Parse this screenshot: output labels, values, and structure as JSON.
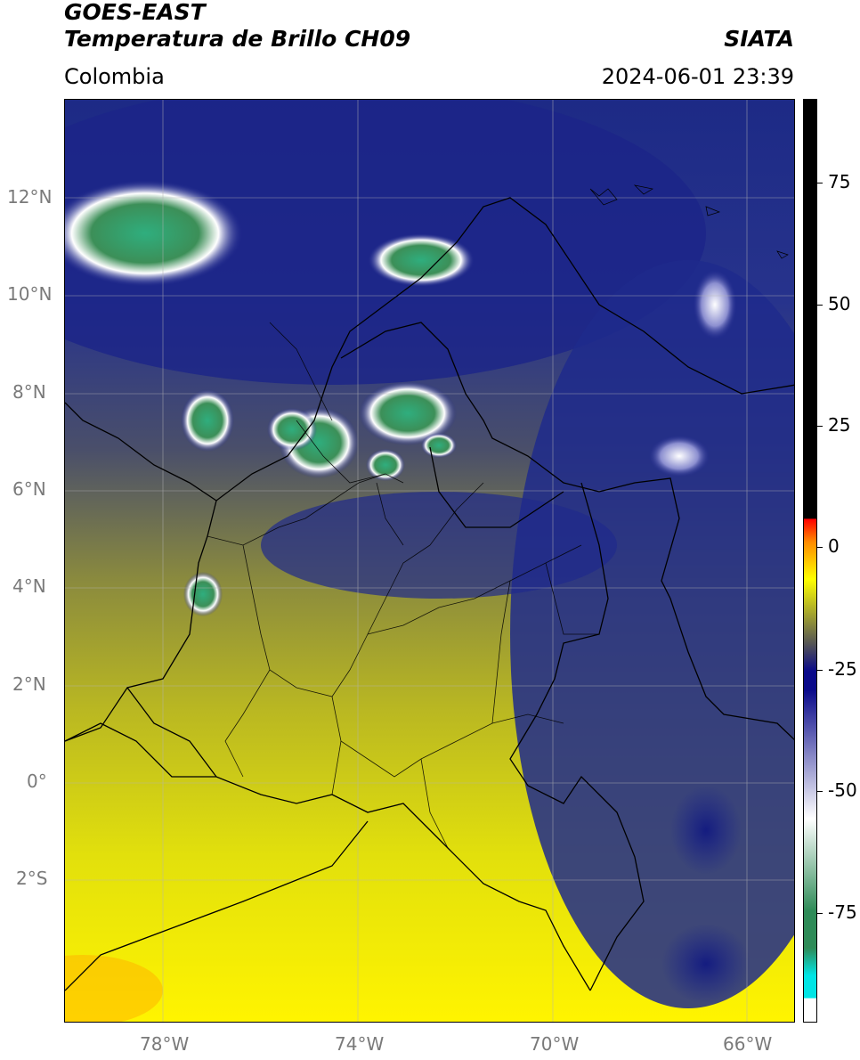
{
  "header": {
    "title_line1": "GOES-EAST",
    "title_line2": "Temperatura de Brillo CH09",
    "agency": "SIATA",
    "region": "Colombia",
    "datetime": "2024-06-01 23:39"
  },
  "map": {
    "lat_labels": [
      "12°N",
      "10°N",
      "8°N",
      "6°N",
      "4°N",
      "2°N",
      "0°",
      "2°S"
    ],
    "lon_labels": [
      "78°W",
      "74°W",
      "70°W",
      "66°W"
    ],
    "extent": {
      "lon_min": -80,
      "lon_max": -65,
      "lat_min": -5,
      "lat_max": 14
    },
    "gridlines": true
  },
  "colorbar": {
    "ticks": [
      "75",
      "50",
      "25",
      "0",
      "-25",
      "-50",
      "-75"
    ],
    "range": [
      -95,
      90
    ],
    "colors": [
      "#ffffff",
      "#00e5e5",
      "#2e8b57",
      "#ffffff",
      "#0a0a8a",
      "#555555",
      "#ffff00",
      "#ff8c00",
      "#ff0000",
      "#000000"
    ]
  }
}
